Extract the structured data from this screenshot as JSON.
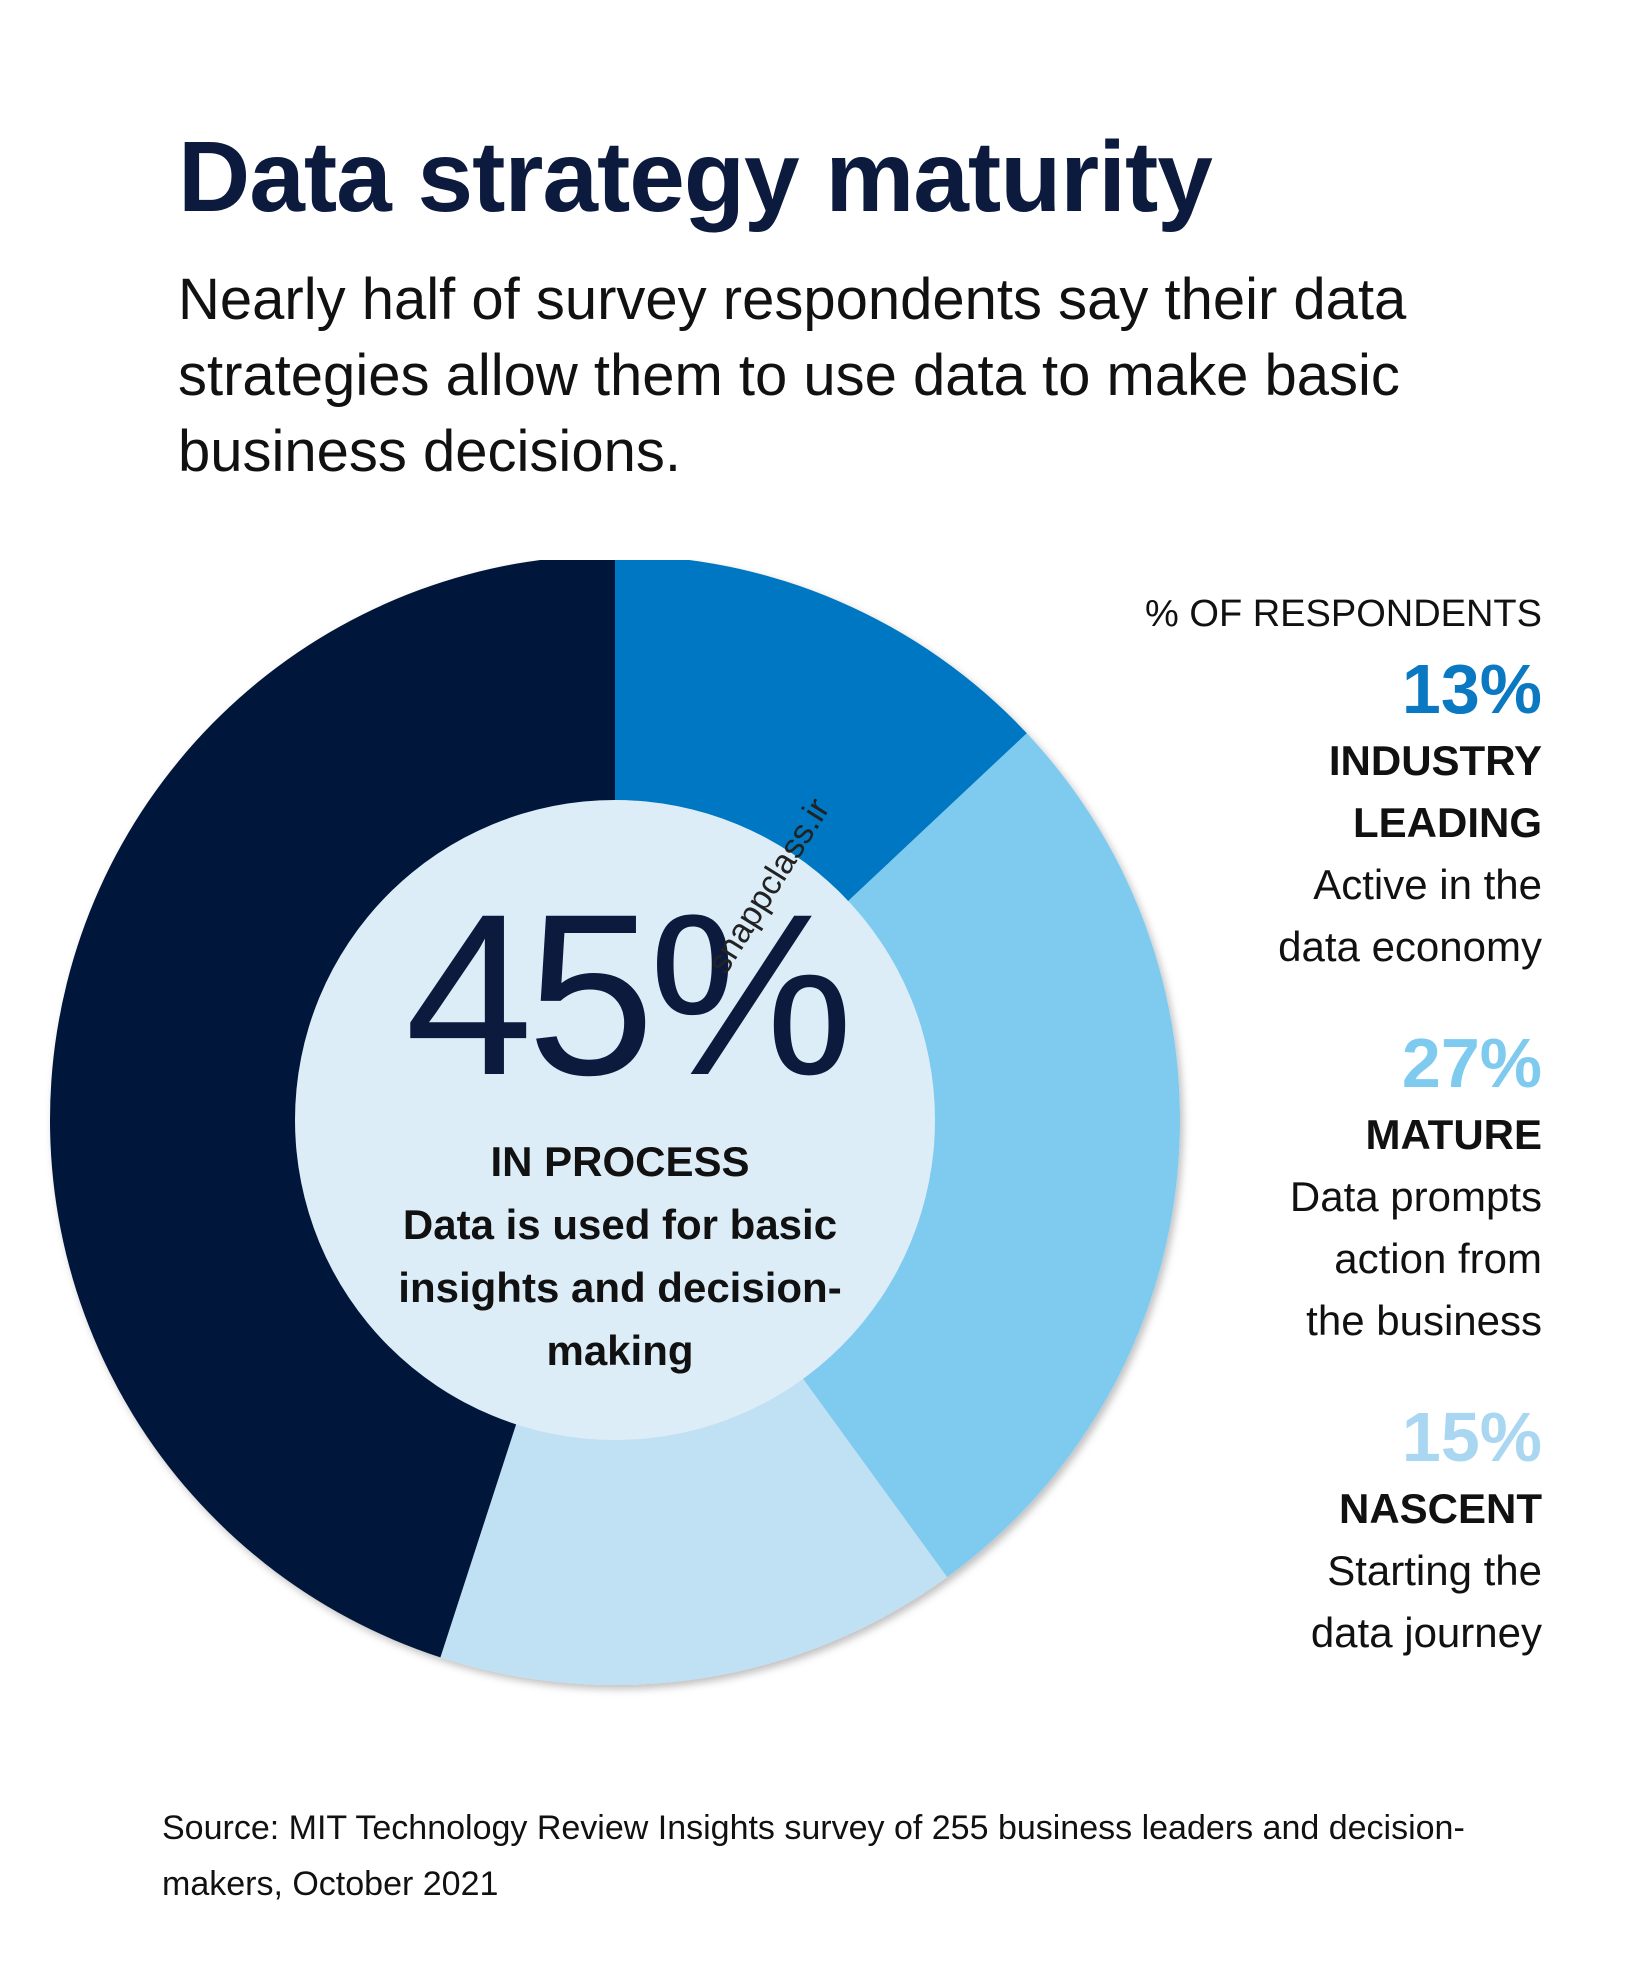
{
  "title": "Data strategy maturity",
  "subtitle": "Nearly half of survey respondents say their data strategies allow them to use data to make basic business decisions.",
  "center": {
    "value_text": "45%",
    "name": "IN PROCESS",
    "description": "Data is used for basic insights and decision-making"
  },
  "watermark": "snappclass.ir",
  "legend": {
    "header": "% OF RESPONDENTS",
    "items": [
      {
        "value_text": "13%",
        "name_line1": "INDUSTRY",
        "name_line2": "LEADING",
        "desc_line1": "Active in the",
        "desc_line2": "data economy",
        "desc_line3": ""
      },
      {
        "value_text": "27%",
        "name_line1": "MATURE",
        "name_line2": "",
        "desc_line1": "Data prompts",
        "desc_line2": "action from",
        "desc_line3": "the business"
      },
      {
        "value_text": "15%",
        "name_line1": "NASCENT",
        "name_line2": "",
        "desc_line1": "Starting the",
        "desc_line2": "data journey",
        "desc_line3": ""
      }
    ]
  },
  "source": "Source: MIT Technology Review Insights survey of 255 business leaders and decision-makers, October 2021",
  "chart_data": {
    "type": "pie",
    "style": "donut",
    "start": "top, clockwise",
    "slices": [
      {
        "label": "INDUSTRY LEADING",
        "value": 13,
        "color": "#0077c2"
      },
      {
        "label": "MATURE",
        "value": 27,
        "color": "#7fcbef"
      },
      {
        "label": "NASCENT",
        "value": 15,
        "color": "#c0e0f3"
      },
      {
        "label": "IN PROCESS",
        "value": 45,
        "color": "#00183a"
      }
    ],
    "center_fill": "#dcedf8",
    "legend_placement": "right"
  }
}
